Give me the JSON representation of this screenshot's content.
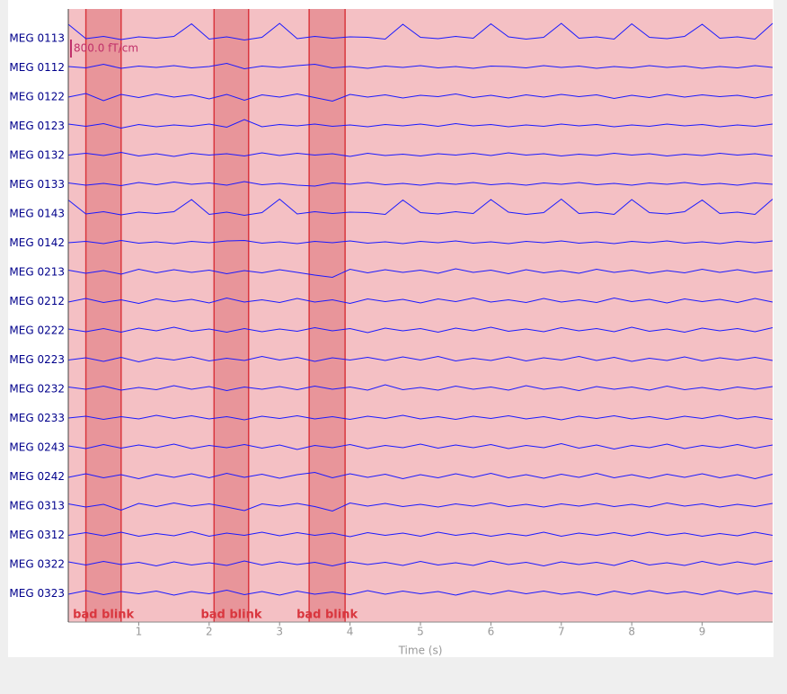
{
  "chart_data": {
    "type": "line",
    "x_label": "Time (s)",
    "xlim": [
      0,
      10
    ],
    "xticks": [
      1,
      2,
      3,
      4,
      5,
      6,
      7,
      8,
      9
    ],
    "color": "#1a1aff",
    "label_color": "#00008b",
    "background": "#f4c0c4",
    "scale_bar": {
      "value": 800,
      "label": "800.0 fT/cm"
    },
    "annotations": [
      {
        "label": "bad blink",
        "start": 0.25,
        "end": 0.75,
        "color": "#e8959a",
        "edge": "#d9363e"
      },
      {
        "label": "bad blink",
        "start": 2.07,
        "end": 2.56,
        "color": "#e8959a",
        "edge": "#d9363e"
      },
      {
        "label": "bad blink",
        "start": 3.42,
        "end": 3.93,
        "color": "#e8959a",
        "edge": "#d9363e"
      }
    ],
    "x": [
      0,
      0.25,
      0.5,
      0.75,
      1,
      1.25,
      1.5,
      1.75,
      2,
      2.25,
      2.5,
      2.75,
      3,
      3.25,
      3.5,
      3.75,
      4,
      4.25,
      4.5,
      4.75,
      5,
      5.25,
      5.5,
      5.75,
      6,
      6.25,
      6.5,
      6.75,
      7,
      7.25,
      7.5,
      7.75,
      8,
      8.25,
      8.5,
      8.75,
      9,
      9.25,
      9.5,
      9.75,
      10
    ],
    "series": [
      {
        "name": "MEG 0113",
        "values": [
          600,
          -40,
          60,
          -80,
          40,
          -20,
          60,
          620,
          -60,
          40,
          -100,
          20,
          640,
          -40,
          60,
          -20,
          40,
          20,
          -60,
          600,
          20,
          -40,
          60,
          -20,
          620,
          40,
          -60,
          20,
          640,
          -20,
          40,
          -60,
          620,
          20,
          -40,
          60,
          600,
          -20,
          40,
          -60,
          640
        ]
      },
      {
        "name": "MEG 0112",
        "values": [
          20,
          -40,
          120,
          -60,
          40,
          -20,
          60,
          -40,
          20,
          160,
          -80,
          40,
          -20,
          60,
          120,
          -40,
          20,
          -60,
          40,
          -20,
          60,
          -40,
          20,
          -60,
          40,
          20,
          -40,
          60,
          -20,
          40,
          -60,
          20,
          -40,
          60,
          -20,
          40,
          -60,
          20,
          -40,
          60,
          -20
        ]
      },
      {
        "name": "MEG 0122",
        "values": [
          -40,
          120,
          -200,
          80,
          -60,
          100,
          -40,
          60,
          -120,
          80,
          -180,
          60,
          -40,
          100,
          -60,
          -220,
          80,
          -40,
          60,
          -80,
          40,
          -20,
          100,
          -60,
          40,
          -80,
          60,
          -40,
          80,
          -20,
          60,
          -100,
          40,
          -60,
          80,
          -40,
          60,
          -20,
          40,
          -80,
          60
        ]
      },
      {
        "name": "MEG 0123",
        "values": [
          60,
          -40,
          80,
          -120,
          40,
          -60,
          20,
          -40,
          60,
          -80,
          260,
          -60,
          40,
          -20,
          60,
          -40,
          20,
          -60,
          40,
          -20,
          60,
          -40,
          80,
          -20,
          40,
          -60,
          20,
          -40,
          60,
          -20,
          40,
          -60,
          20,
          -40,
          60,
          -20,
          40,
          -60,
          20,
          -40,
          60
        ]
      },
      {
        "name": "MEG 0132",
        "values": [
          -20,
          60,
          -40,
          100,
          -60,
          40,
          -80,
          60,
          -20,
          40,
          -60,
          80,
          -40,
          60,
          -20,
          40,
          -80,
          60,
          -40,
          20,
          -60,
          40,
          -20,
          60,
          -40,
          80,
          -20,
          40,
          -60,
          20,
          -40,
          60,
          -20,
          40,
          -60,
          20,
          -40,
          60,
          -20,
          40,
          -60
        ]
      },
      {
        "name": "MEG 0133",
        "values": [
          40,
          -60,
          20,
          -80,
          60,
          -40,
          80,
          -20,
          40,
          -60,
          100,
          -40,
          20,
          -60,
          -100,
          40,
          -20,
          60,
          -40,
          20,
          -60,
          40,
          -20,
          60,
          -40,
          20,
          -60,
          40,
          -20,
          60,
          -40,
          20,
          -60,
          40,
          -20,
          60,
          -40,
          20,
          -60,
          40,
          -20
        ]
      },
      {
        "name": "MEG 0143",
        "values": [
          580,
          -40,
          60,
          -80,
          40,
          -20,
          60,
          600,
          -60,
          40,
          -100,
          20,
          620,
          -40,
          60,
          -20,
          40,
          20,
          -60,
          580,
          20,
          -40,
          60,
          -20,
          600,
          40,
          -60,
          20,
          620,
          -20,
          40,
          -60,
          600,
          20,
          -40,
          60,
          580,
          -20,
          40,
          -60,
          620
        ]
      },
      {
        "name": "MEG 0142",
        "values": [
          -20,
          40,
          -60,
          80,
          -40,
          20,
          -60,
          40,
          -20,
          60,
          80,
          -40,
          20,
          -60,
          40,
          -20,
          60,
          -40,
          20,
          -60,
          40,
          -20,
          60,
          -40,
          20,
          -60,
          40,
          -20,
          60,
          -40,
          20,
          -60,
          40,
          -20,
          60,
          -40,
          20,
          -60,
          40,
          -20,
          60
        ]
      },
      {
        "name": "MEG 0213",
        "values": [
          60,
          -80,
          40,
          -120,
          100,
          -60,
          80,
          -40,
          60,
          -100,
          40,
          -60,
          80,
          -40,
          -160,
          -260,
          100,
          -60,
          80,
          -40,
          60,
          -80,
          120,
          -40,
          60,
          -100,
          80,
          -60,
          40,
          -80,
          100,
          -40,
          60,
          -80,
          40,
          -60,
          100,
          -40,
          80,
          -60,
          40
        ]
      },
      {
        "name": "MEG 0212",
        "values": [
          -60,
          100,
          -80,
          40,
          -120,
          80,
          -40,
          60,
          -100,
          120,
          -60,
          40,
          -80,
          100,
          -60,
          40,
          -120,
          80,
          -40,
          60,
          -100,
          80,
          -40,
          120,
          -60,
          40,
          -80,
          100,
          -60,
          40,
          -80,
          120,
          -40,
          60,
          -100,
          80,
          -40,
          60,
          -80,
          100,
          -60
        ]
      },
      {
        "name": "MEG 0222",
        "values": [
          40,
          -80,
          60,
          -100,
          80,
          -40,
          120,
          -60,
          40,
          -100,
          60,
          -80,
          40,
          -60,
          100,
          -40,
          60,
          -120,
          80,
          -40,
          60,
          -100,
          80,
          -40,
          120,
          -60,
          40,
          -80,
          100,
          -40,
          60,
          -80,
          120,
          -60,
          40,
          -100,
          80,
          -40,
          60,
          -80,
          100
        ]
      },
      {
        "name": "MEG 0223",
        "values": [
          -40,
          60,
          -100,
          80,
          -120,
          60,
          -40,
          100,
          -80,
          40,
          -60,
          120,
          -40,
          80,
          -100,
          60,
          -40,
          80,
          -60,
          100,
          -40,
          120,
          -80,
          40,
          -60,
          100,
          -80,
          60,
          -40,
          120,
          -60,
          80,
          -100,
          40,
          -60,
          100,
          -80,
          60,
          -40,
          80,
          -60
        ]
      },
      {
        "name": "MEG 0232",
        "values": [
          60,
          -40,
          100,
          -80,
          40,
          -60,
          120,
          -40,
          80,
          -100,
          60,
          -40,
          80,
          -60,
          100,
          -40,
          60,
          -80,
          160,
          -60,
          40,
          -80,
          100,
          -40,
          60,
          -80,
          120,
          -40,
          60,
          -100,
          80,
          -40,
          60,
          -80,
          100,
          -60,
          40,
          -80,
          60,
          -40,
          80
        ]
      },
      {
        "name": "MEG 0233",
        "values": [
          -20,
          60,
          -80,
          40,
          -60,
          100,
          -40,
          80,
          -60,
          40,
          -100,
          60,
          -40,
          80,
          -60,
          40,
          -80,
          60,
          -40,
          100,
          -60,
          40,
          -80,
          60,
          -40,
          80,
          -60,
          40,
          -100,
          60,
          -40,
          80,
          -60,
          40,
          -80,
          60,
          -40,
          100,
          -60,
          40,
          -80
        ]
      },
      {
        "name": "MEG 0243",
        "values": [
          40,
          -80,
          100,
          -60,
          80,
          -40,
          120,
          -80,
          60,
          -40,
          100,
          -60,
          80,
          -120,
          60,
          -40,
          100,
          -80,
          60,
          -40,
          120,
          -60,
          80,
          -40,
          100,
          -80,
          60,
          -40,
          140,
          -60,
          80,
          -100,
          60,
          -40,
          120,
          -80,
          60,
          -40,
          100,
          -60,
          80
        ]
      },
      {
        "name": "MEG 0242",
        "values": [
          -60,
          100,
          -80,
          60,
          -120,
          80,
          -60,
          100,
          -80,
          120,
          -60,
          80,
          -100,
          60,
          160,
          -80,
          100,
          -60,
          80,
          -120,
          60,
          -80,
          100,
          -60,
          120,
          -80,
          60,
          -100,
          80,
          -60,
          120,
          -80,
          60,
          -100,
          80,
          -60,
          100,
          -80,
          60,
          -120,
          80
        ]
      },
      {
        "name": "MEG 0313",
        "values": [
          60,
          -80,
          40,
          -220,
          80,
          -60,
          100,
          -40,
          60,
          -80,
          -240,
          60,
          -40,
          80,
          -60,
          -260,
          100,
          -40,
          80,
          -60,
          40,
          -80,
          60,
          -40,
          100,
          -60,
          40,
          -80,
          60,
          -40,
          80,
          -60,
          40,
          -80,
          100,
          -40,
          60,
          -80,
          40,
          -60,
          80
        ]
      },
      {
        "name": "MEG 0312",
        "values": [
          -40,
          80,
          -60,
          100,
          -80,
          40,
          -60,
          120,
          -80,
          60,
          -40,
          100,
          -60,
          80,
          -40,
          60,
          -100,
          80,
          -40,
          60,
          -80,
          100,
          -40,
          60,
          -80,
          40,
          -60,
          100,
          -80,
          60,
          -40,
          80,
          -60,
          100,
          -40,
          60,
          -80,
          40,
          -60,
          100,
          -40
        ]
      },
      {
        "name": "MEG 0322",
        "values": [
          80,
          -60,
          100,
          -40,
          60,
          -100,
          80,
          -60,
          40,
          -80,
          120,
          -60,
          80,
          -40,
          60,
          -100,
          80,
          -40,
          60,
          -80,
          100,
          -60,
          40,
          -80,
          120,
          -40,
          60,
          -100,
          80,
          -40,
          60,
          -80,
          140,
          -60,
          40,
          -80,
          100,
          -60,
          80,
          -40,
          120
        ]
      },
      {
        "name": "MEG 0323",
        "values": [
          -60,
          100,
          -80,
          60,
          -40,
          80,
          -100,
          60,
          -40,
          120,
          -80,
          60,
          -100,
          80,
          -60,
          40,
          -80,
          100,
          -60,
          80,
          -40,
          60,
          -100,
          80,
          -60,
          100,
          -40,
          80,
          -60,
          40,
          -100,
          80,
          -60,
          100,
          -40,
          60,
          -80,
          100,
          -60,
          80,
          -40
        ]
      }
    ]
  }
}
